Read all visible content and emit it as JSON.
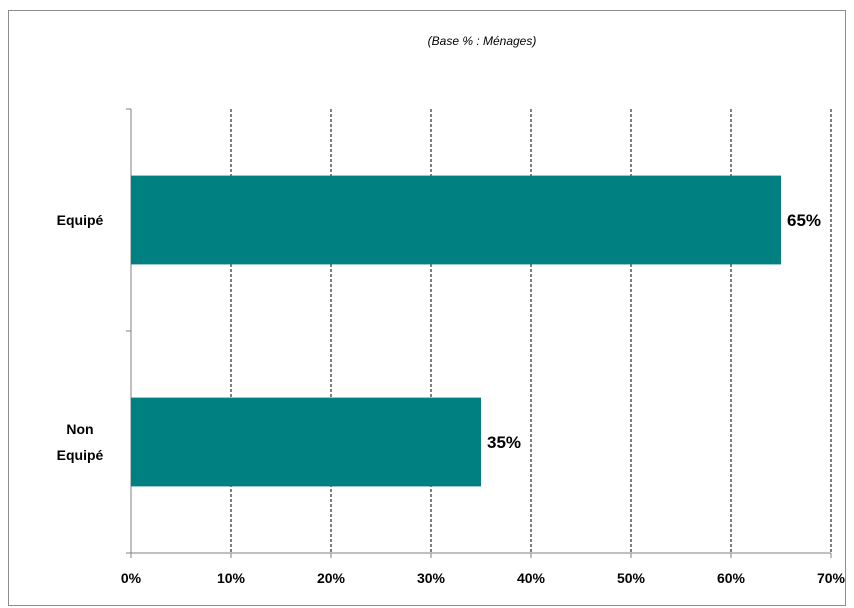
{
  "chart_data": {
    "type": "bar",
    "orientation": "horizontal",
    "subtitle": "(Base % : Ménages)",
    "title": "",
    "xlabel": "",
    "ylabel": "",
    "categories": [
      [
        "Equipé"
      ],
      [
        "Non",
        "Equipé"
      ]
    ],
    "values": [
      65,
      35
    ],
    "data_labels": [
      "65%",
      "35%"
    ],
    "x_ticks": [
      "0%",
      "10%",
      "20%",
      "30%",
      "40%",
      "50%",
      "60%",
      "70%"
    ],
    "xlim": [
      0,
      70
    ],
    "grid": "vertical dashed",
    "legend": "none",
    "bar_color": "#008080"
  }
}
